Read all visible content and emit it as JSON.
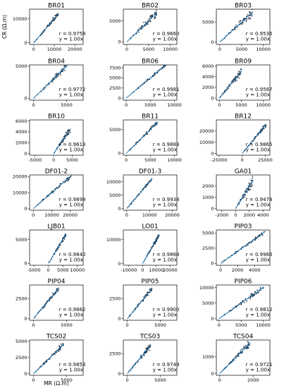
{
  "figure": {
    "ylabel": "CR (Ω.m)",
    "xlabel": "MR (Ω.m)"
  },
  "chart_data": [
    {
      "type": "scatter",
      "title": "BR01",
      "r": "r = 0.9758",
      "fit": "y = 1.00x",
      "xlim": [
        -2000,
        24000
      ],
      "ylim": [
        -700,
        14000
      ],
      "xticks": [
        0,
        10000,
        20000
      ],
      "yticks": [
        0,
        10000
      ],
      "xmax": 12000
    },
    {
      "type": "scatter",
      "title": "BR02",
      "r": "r = 0.9660",
      "fit": "y = 1.00x",
      "xlim": [
        -800,
        11500
      ],
      "ylim": [
        -600,
        7800
      ],
      "xticks": [
        0,
        5000,
        10000
      ],
      "yticks": [
        0,
        5000
      ],
      "xmax": 6800
    },
    {
      "type": "scatter",
      "title": "BR03",
      "r": "r = 0.9536",
      "fit": "y = 1.00x",
      "xlim": [
        -800,
        11500
      ],
      "ylim": [
        -600,
        8200
      ],
      "xticks": [
        0,
        5000,
        10000
      ],
      "yticks": [
        0,
        5000
      ],
      "xmax": 7500
    },
    {
      "type": "scatter",
      "title": "BR04",
      "r": "r = 0.9772",
      "fit": "y = 1.00x",
      "xlim": [
        -600,
        7500
      ],
      "ylim": [
        -300,
        5200
      ],
      "xticks": [
        0,
        5000
      ],
      "yticks": [
        0,
        5000
      ],
      "xmax": 5000
    },
    {
      "type": "scatter",
      "title": "BR06",
      "r": "r = 0.9981",
      "fit": "y = 1.00x",
      "xlim": [
        -600,
        10500
      ],
      "ylim": [
        -500,
        8200
      ],
      "xticks": [
        0,
        5000,
        10000
      ],
      "yticks": [
        0,
        2500,
        5000,
        7500
      ],
      "xmax": 8200
    },
    {
      "type": "scatter",
      "title": "BR09",
      "r": "r = 0.9567",
      "fit": "y = 1.00x",
      "xlim": [
        -700,
        11500
      ],
      "ylim": [
        -400,
        6200
      ],
      "xticks": [
        0,
        5000,
        10000
      ],
      "yticks": [
        0,
        2000,
        4000,
        6000
      ],
      "xmax": 5000
    },
    {
      "type": "scatter",
      "title": "BR10",
      "r": "r = 0.9613",
      "fit": "y = 1.00x",
      "xlim": [
        -6500,
        8000
      ],
      "ylim": [
        -300,
        6200
      ],
      "xticks": [
        -5000,
        0,
        5000
      ],
      "yticks": [
        0,
        2000,
        4000,
        6000
      ],
      "xmax": 4500
    },
    {
      "type": "scatter",
      "title": "BR11",
      "r": "r = 0.9883",
      "fit": "y = 1.00x",
      "xlim": [
        -600,
        10500
      ],
      "ylim": [
        -400,
        7000
      ],
      "xticks": [
        0,
        5000,
        10000
      ],
      "yticks": [
        0,
        5000
      ],
      "xmax": 6500
    },
    {
      "type": "scatter",
      "title": "BR12",
      "r": "r = 0.9865",
      "fit": "y = 1.00x",
      "xlim": [
        -28000,
        30000
      ],
      "ylim": [
        -1500,
        30000
      ],
      "xticks": [
        -25000,
        0,
        25000
      ],
      "yticks": [
        0,
        10000,
        20000
      ],
      "xmax": 26000
    },
    {
      "type": "scatter",
      "title": "DF01-2",
      "r": "r = 0.9898",
      "fit": "y = 1.00x",
      "xlim": [
        -2000,
        27000
      ],
      "ylim": [
        -1000,
        21000
      ],
      "xticks": [
        0,
        10000,
        20000
      ],
      "yticks": [
        0,
        10000,
        20000
      ],
      "xmax": 21000
    },
    {
      "type": "scatter",
      "title": "DF01-3",
      "r": "r = 0.9938",
      "fit": "y = 1.00x",
      "xlim": [
        -1500,
        22000
      ],
      "ylim": [
        -600,
        12500
      ],
      "xticks": [
        0,
        10000,
        20000
      ],
      "yticks": [
        0,
        5000,
        10000
      ],
      "xmax": 11000
    },
    {
      "type": "scatter",
      "title": "GA01",
      "r": "r = 0.9474",
      "fit": "y = 1.00x",
      "xlim": [
        -2800,
        5000
      ],
      "ylim": [
        -150,
        3000
      ],
      "xticks": [
        -2000,
        0,
        2000,
        4000
      ],
      "yticks": [
        0,
        1000,
        2000
      ],
      "xmax": 2500
    },
    {
      "type": "scatter",
      "title": "LJB01",
      "r": "r = 0.9840",
      "fit": "y = 1.00x",
      "xlim": [
        -6500,
        12000
      ],
      "ylim": [
        -400,
        7000
      ],
      "xticks": [
        -5000,
        0,
        5000,
        10000
      ],
      "yticks": [
        0,
        5000
      ],
      "xmax": 6000
    },
    {
      "type": "scatter",
      "title": "LO01",
      "r": "r = 0.9868",
      "fit": "y = 1.00x",
      "xlim": [
        -14000,
        25000
      ],
      "ylim": [
        -700,
        14000
      ],
      "xticks": [
        -10000,
        0,
        10000,
        20000
      ],
      "yticks": [
        0,
        10000
      ],
      "xmax": 12000
    },
    {
      "type": "scatter",
      "title": "PIP03",
      "r": "r = 0.9966",
      "fit": "y = 1.00x",
      "xlim": [
        -500,
        5800
      ],
      "ylim": [
        -300,
        5500
      ],
      "xticks": [
        0,
        2000,
        4000
      ],
      "yticks": [
        0,
        2500,
        5000
      ],
      "xmax": 5200
    },
    {
      "type": "scatter",
      "title": "PIP04",
      "r": "r = 0.9862",
      "fit": "y = 1.00x",
      "xlim": [
        -600,
        7500
      ],
      "ylim": [
        -200,
        4200
      ],
      "xticks": [
        0,
        5000
      ],
      "yticks": [
        0,
        2500
      ],
      "xmax": 3800
    },
    {
      "type": "scatter",
      "title": "PIP05",
      "r": "r = 0.9900",
      "fit": "y = 1.00x",
      "xlim": [
        -600,
        7500
      ],
      "ylim": [
        -200,
        4200
      ],
      "xticks": [
        0,
        5000
      ],
      "yticks": [
        0,
        2500
      ],
      "xmax": 3700
    },
    {
      "type": "scatter",
      "title": "PIP06",
      "r": "r = 0.9812",
      "fit": "y = 1.00x",
      "xlim": [
        -600,
        11500
      ],
      "ylim": [
        -500,
        10800
      ],
      "xticks": [
        0,
        5000,
        10000
      ],
      "yticks": [
        0,
        5000,
        10000
      ],
      "xmax": 10000
    },
    {
      "type": "scatter",
      "title": "TCS02",
      "r": "r = 0.9853",
      "fit": "y = 1.00x",
      "xlim": [
        -600,
        7500
      ],
      "ylim": [
        -250,
        5200
      ],
      "xticks": [
        0,
        5000
      ],
      "yticks": [
        0,
        2500,
        5000
      ],
      "xmax": 4500
    },
    {
      "type": "scatter",
      "title": "TCS03",
      "r": "r = 0.9749",
      "fit": "y = 1.00x",
      "xlim": [
        -600,
        7500
      ],
      "ylim": [
        -200,
        4200
      ],
      "xticks": [
        0,
        5000
      ],
      "yticks": [
        0,
        2500
      ],
      "xmax": 3500
    },
    {
      "type": "scatter",
      "title": "TCS04",
      "r": "r = 0.9721",
      "fit": "y = 1.00x",
      "xlim": [
        -200,
        3000
      ],
      "ylim": [
        -100,
        2000
      ],
      "xticks": [
        0,
        2000
      ],
      "yticks": [
        0,
        1000
      ],
      "xmax": 1800
    }
  ]
}
